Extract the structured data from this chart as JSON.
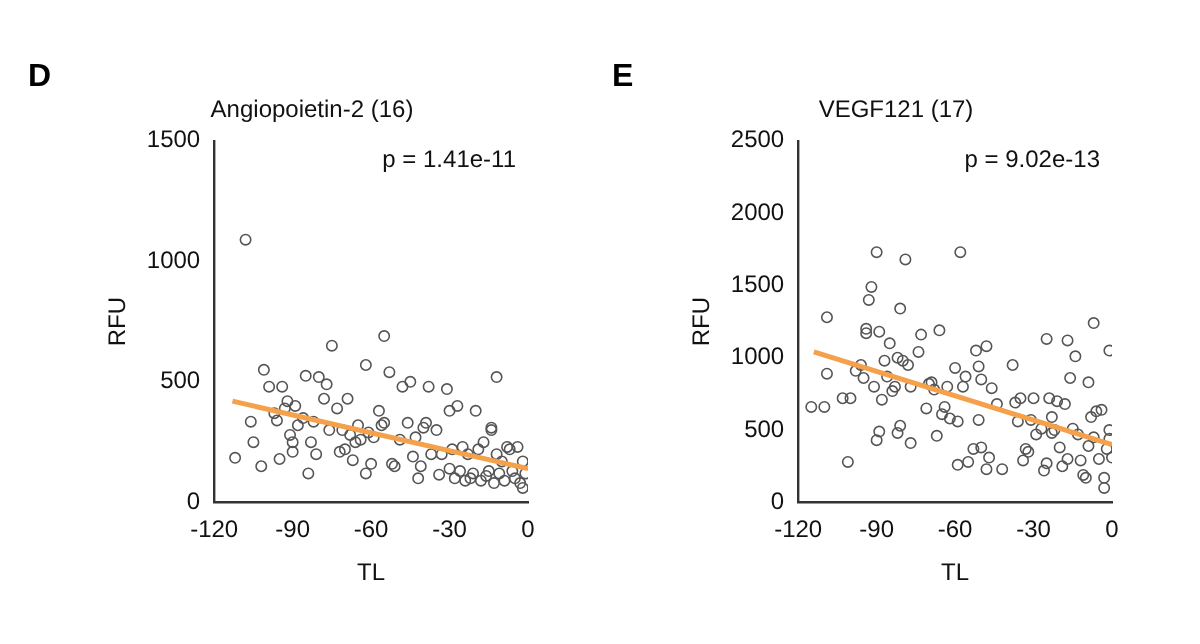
{
  "chart_data": [
    {
      "type": "scatter",
      "title": "Angiopoietin-2 (16)",
      "xlabel": "TL",
      "ylabel": "RFU",
      "annotations": [
        "D",
        "p = 1.41e-11"
      ],
      "xlim": [
        -120,
        0
      ],
      "xticks": [
        -120,
        -90,
        -60,
        -30,
        0
      ],
      "ylim": [
        0,
        1500
      ],
      "yticks": [
        0,
        500,
        1000,
        1500
      ],
      "grid": false,
      "legend": false,
      "marker": "circle",
      "series": [
        {
          "color": "#555555",
          "x": [
            -112,
            -108,
            -106,
            -105,
            -102,
            -101,
            -99,
            -97,
            -96,
            -95,
            -94,
            -93,
            -92,
            -91,
            -90,
            -90,
            -89,
            -88,
            -86,
            -85,
            -84,
            -83,
            -82,
            -81,
            -80,
            -78,
            -77,
            -76,
            -75,
            -73,
            -72,
            -71,
            -70,
            -69,
            -68,
            -67,
            -66,
            -65,
            -64,
            -62,
            -62,
            -61,
            -60,
            -59,
            -57,
            -56,
            -55,
            -55,
            -53,
            -52,
            -51,
            -49,
            -48,
            -46,
            -45,
            -44,
            -43,
            -42,
            -41,
            -40,
            -39,
            -38,
            -37,
            -35,
            -34,
            -33,
            -31,
            -30,
            -30,
            -29,
            -28,
            -27,
            -26,
            -25,
            -24,
            -23,
            -22,
            -21,
            -20,
            -19,
            -18,
            -17,
            -16,
            -15,
            -14,
            -14,
            -13,
            -12,
            -12,
            -11,
            -10,
            -9,
            -8,
            -7,
            -6,
            -5,
            -4,
            -3,
            -2,
            -1,
            -2
          ],
          "values": [
            185,
            1090,
            335,
            250,
            150,
            550,
            480,
            370,
            340,
            180,
            480,
            390,
            420,
            280,
            210,
            250,
            400,
            320,
            350,
            525,
            120,
            250,
            335,
            200,
            520,
            430,
            490,
            300,
            650,
            390,
            210,
            300,
            220,
            430,
            280,
            175,
            250,
            320,
            260,
            570,
            120,
            290,
            160,
            270,
            380,
            320,
            690,
            330,
            540,
            160,
            150,
            260,
            480,
            330,
            500,
            190,
            270,
            100,
            150,
            310,
            330,
            480,
            200,
            300,
            115,
            200,
            470,
            380,
            140,
            220,
            100,
            400,
            130,
            230,
            90,
            200,
            100,
            120,
            380,
            220,
            90,
            250,
            110,
            130,
            310,
            300,
            80,
            520,
            200,
            120,
            170,
            90,
            230,
            220,
            130,
            100,
            230,
            80,
            60,
            120,
            170
          ]
        },
        {
          "type": "line",
          "color": "#f5a04a",
          "marker": "none",
          "x": [
            -113,
            0
          ],
          "values": [
            420,
            140
          ]
        }
      ]
    },
    {
      "type": "scatter",
      "title": "VEGF121 (17)",
      "xlabel": "TL",
      "ylabel": "RFU",
      "annotations": [
        "E",
        "p = 9.02e-13"
      ],
      "xlim": [
        -120,
        0
      ],
      "xticks": [
        -120,
        -90,
        -60,
        -30,
        0
      ],
      "ylim": [
        0,
        2500
      ],
      "yticks": [
        0,
        500,
        1000,
        1500,
        2000,
        2500
      ],
      "grid": false,
      "legend": false,
      "marker": "circle",
      "series": [
        {
          "color": "#555555",
          "x": [
            -115,
            -110,
            -109,
            -109,
            -103,
            -101,
            -100,
            -98,
            -96,
            -95,
            -94,
            -94,
            -93,
            -92,
            -91,
            -90,
            -90,
            -89,
            -89,
            -88,
            -87,
            -86,
            -85,
            -84,
            -83,
            -82,
            -82,
            -81,
            -81,
            -80,
            -79,
            -78,
            -77,
            -77,
            -74,
            -73,
            -71,
            -70,
            -69,
            -68,
            -67,
            -66,
            -65,
            -64,
            -63,
            -62,
            -60,
            -59,
            -59,
            -58,
            -57,
            -56,
            -55,
            -53,
            -52,
            -51,
            -51,
            -50,
            -50,
            -48,
            -48,
            -47,
            -46,
            -44,
            -42,
            -38,
            -37,
            -36,
            -35,
            -34,
            -33,
            -32,
            -31,
            -30,
            -29,
            -27,
            -26,
            -25,
            -25,
            -24,
            -23,
            -23,
            -22,
            -21,
            -20,
            -19,
            -18,
            -17,
            -17,
            -16,
            -15,
            -14,
            -13,
            -12,
            -11,
            -10,
            -9,
            -9,
            -8,
            -7,
            -7,
            -6,
            -5,
            -4,
            -3,
            -3,
            -2,
            -1,
            -1,
            0,
            -1
          ],
          "values": [
            660,
            660,
            1280,
            890,
            720,
            280,
            720,
            910,
            950,
            860,
            1200,
            1170,
            1400,
            1490,
            800,
            1730,
            430,
            490,
            1180,
            710,
            980,
            870,
            1100,
            770,
            800,
            1000,
            480,
            530,
            1340,
            980,
            1680,
            950,
            410,
            800,
            1040,
            1160,
            650,
            820,
            830,
            780,
            460,
            1190,
            610,
            660,
            800,
            580,
            930,
            560,
            260,
            1730,
            800,
            870,
            280,
            370,
            1050,
            940,
            570,
            380,
            850,
            1080,
            230,
            310,
            790,
            680,
            230,
            950,
            690,
            560,
            720,
            290,
            370,
            350,
            570,
            720,
            470,
            510,
            220,
            1130,
            270,
            720,
            590,
            480,
            500,
            700,
            380,
            250,
            680,
            1120,
            300,
            860,
            510,
            1010,
            470,
            290,
            190,
            170,
            830,
            390,
            590,
            1240,
            450,
            630,
            300,
            640,
            170,
            100,
            370,
            1050,
            440,
            310,
            500
          ]
        },
        {
          "type": "line",
          "color": "#f5a04a",
          "marker": "none",
          "x": [
            -114,
            0
          ],
          "values": [
            1040,
            400
          ]
        }
      ]
    }
  ]
}
